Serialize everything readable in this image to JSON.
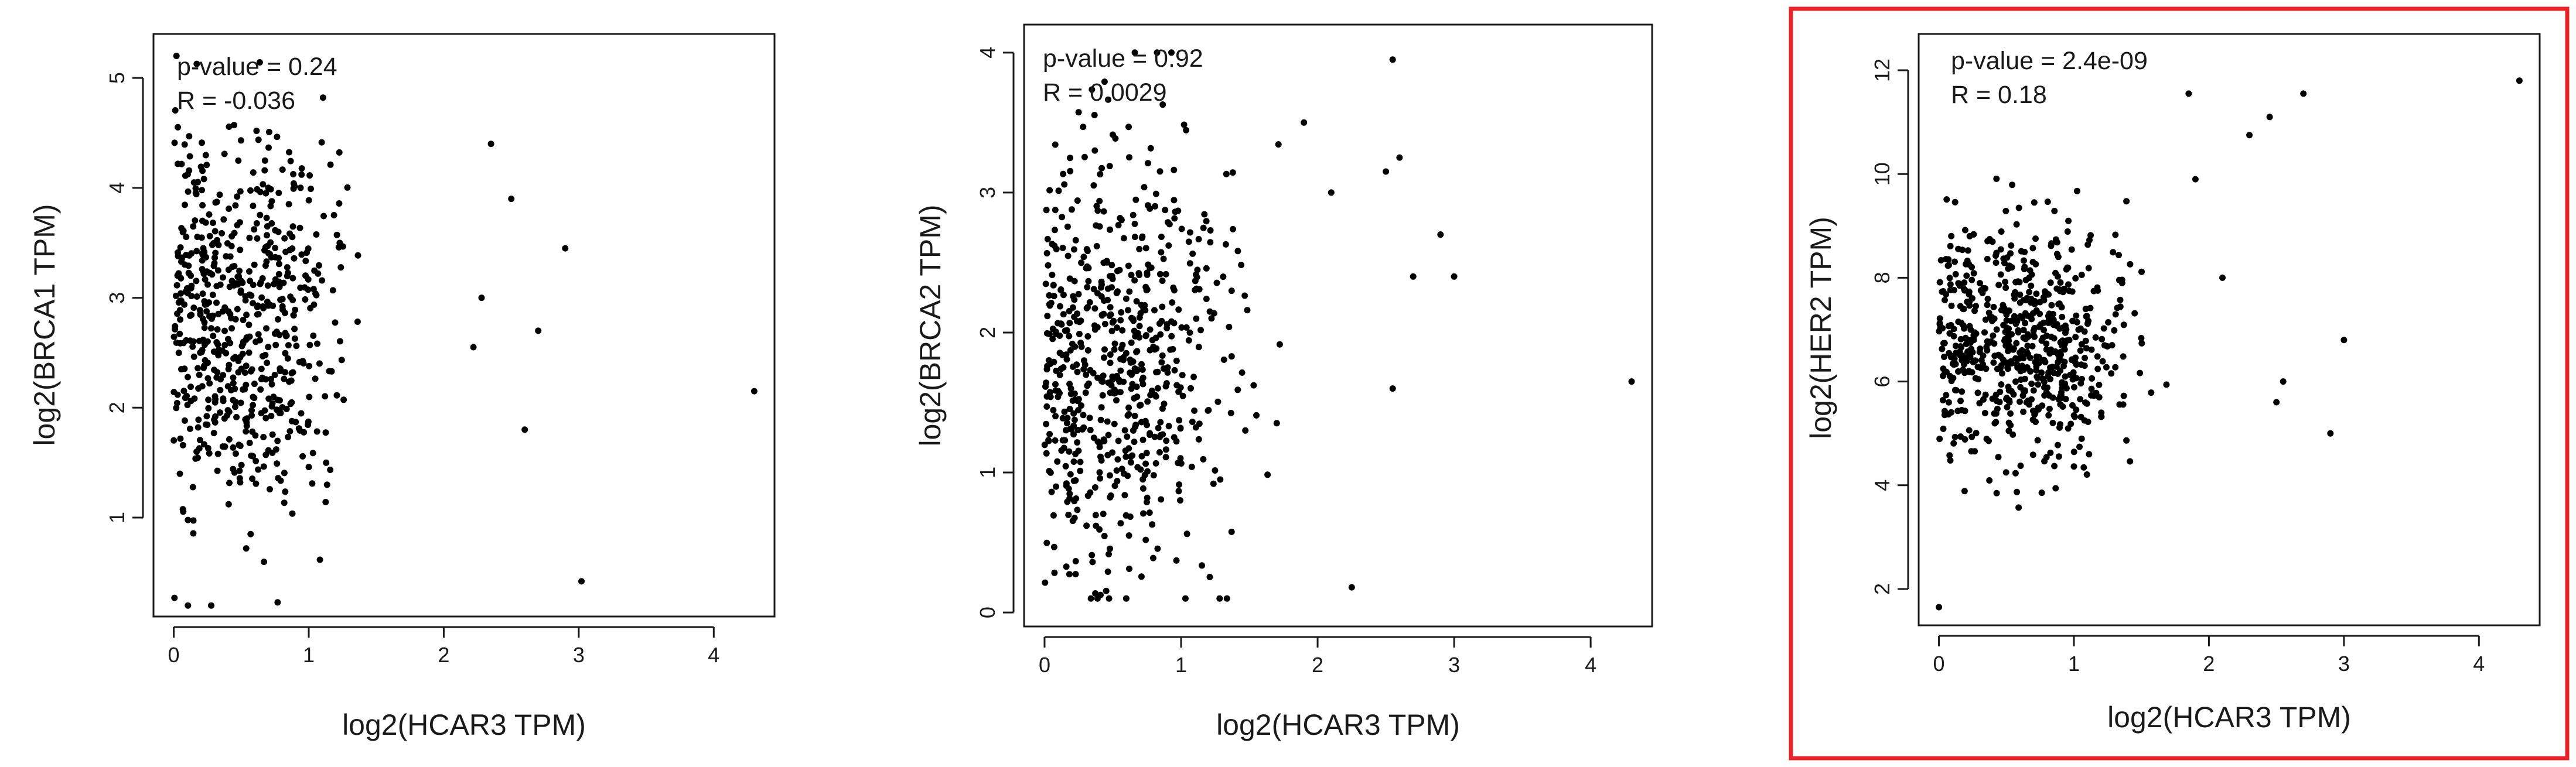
{
  "chart_data": [
    {
      "type": "scatter",
      "title": "",
      "xlabel": "log2(HCAR3 TPM)",
      "ylabel": "log2(BRCA1 TPM)",
      "xlim": [
        -0.15,
        4.45
      ],
      "ylim": [
        0.1,
        5.4
      ],
      "xticks": [
        0,
        1,
        2,
        3,
        4
      ],
      "yticks": [
        1,
        2,
        3,
        4,
        5
      ],
      "stats": {
        "p_value": "p-value = 0.24",
        "r": "R = -0.036"
      },
      "highlighted": false,
      "series": [
        {
          "cluster": {
            "n": 620,
            "x_mean": 0.55,
            "x_sd": 0.34,
            "y_mean": 2.75,
            "y_sd": 0.85,
            "y_min": 0.2,
            "y_max": 5.2
          }
        },
        {
          "points": [
            [
              4.3,
              2.15
            ],
            [
              3.02,
              0.42
            ],
            [
              2.9,
              3.45
            ],
            [
              2.6,
              1.8
            ],
            [
              2.7,
              2.7
            ],
            [
              2.5,
              3.9
            ],
            [
              2.35,
              4.4
            ],
            [
              2.28,
              3.0
            ],
            [
              2.22,
              2.55
            ],
            [
              0.02,
              5.2
            ]
          ]
        }
      ]
    },
    {
      "type": "scatter",
      "title": "",
      "xlabel": "log2(HCAR3 TPM)",
      "ylabel": "log2(BRCA2 TPM)",
      "xlim": [
        -0.15,
        4.45
      ],
      "ylim": [
        -0.1,
        4.2
      ],
      "xticks": [
        0,
        1,
        2,
        3,
        4
      ],
      "yticks": [
        0,
        1,
        2,
        3,
        4
      ],
      "stats": {
        "p_value": "p-value = 0.92",
        "r": "R = 0.0029"
      },
      "highlighted": false,
      "series": [
        {
          "cluster": {
            "n": 640,
            "x_mean": 0.6,
            "x_sd": 0.38,
            "y_mean": 1.8,
            "y_sd": 0.8,
            "y_min": 0.1,
            "y_max": 4.0
          }
        },
        {
          "points": [
            [
              4.3,
              1.65
            ],
            [
              2.55,
              3.95
            ],
            [
              2.6,
              3.25
            ],
            [
              2.5,
              3.15
            ],
            [
              2.9,
              2.7
            ],
            [
              3.0,
              2.4
            ],
            [
              2.7,
              2.4
            ],
            [
              2.25,
              0.18
            ],
            [
              2.55,
              1.6
            ],
            [
              2.1,
              3.0
            ],
            [
              1.9,
              3.5
            ]
          ]
        }
      ]
    },
    {
      "type": "scatter",
      "title": "",
      "xlabel": "log2(HCAR3 TPM)",
      "ylabel": "log2(HER2 TPM)",
      "xlim": [
        -0.15,
        4.45
      ],
      "ylim": [
        1.3,
        12.7
      ],
      "xticks": [
        0,
        1,
        2,
        3,
        4
      ],
      "yticks": [
        2,
        4,
        6,
        8,
        10,
        12
      ],
      "stats": {
        "p_value": "p-value = 2.4e-09",
        "r": "R = 0.18"
      },
      "highlighted": true,
      "series": [
        {
          "cluster": {
            "n": 650,
            "x_mean": 0.65,
            "x_sd": 0.36,
            "y_mean": 6.7,
            "y_sd": 1.1,
            "y_min": 1.6,
            "y_max": 12.5
          }
        },
        {
          "points": [
            [
              4.3,
              11.8
            ],
            [
              3.0,
              6.8
            ],
            [
              2.9,
              5.0
            ],
            [
              2.7,
              11.55
            ],
            [
              2.55,
              6.0
            ],
            [
              2.5,
              5.6
            ],
            [
              2.45,
              11.1
            ],
            [
              2.3,
              10.75
            ],
            [
              1.85,
              11.55
            ],
            [
              1.9,
              9.9
            ],
            [
              0.0,
              1.65
            ],
            [
              2.1,
              8.0
            ]
          ]
        }
      ]
    }
  ],
  "colors": {
    "points": "#000000",
    "axes": "#1a1a1a",
    "highlight_border": "#e8242a"
  }
}
